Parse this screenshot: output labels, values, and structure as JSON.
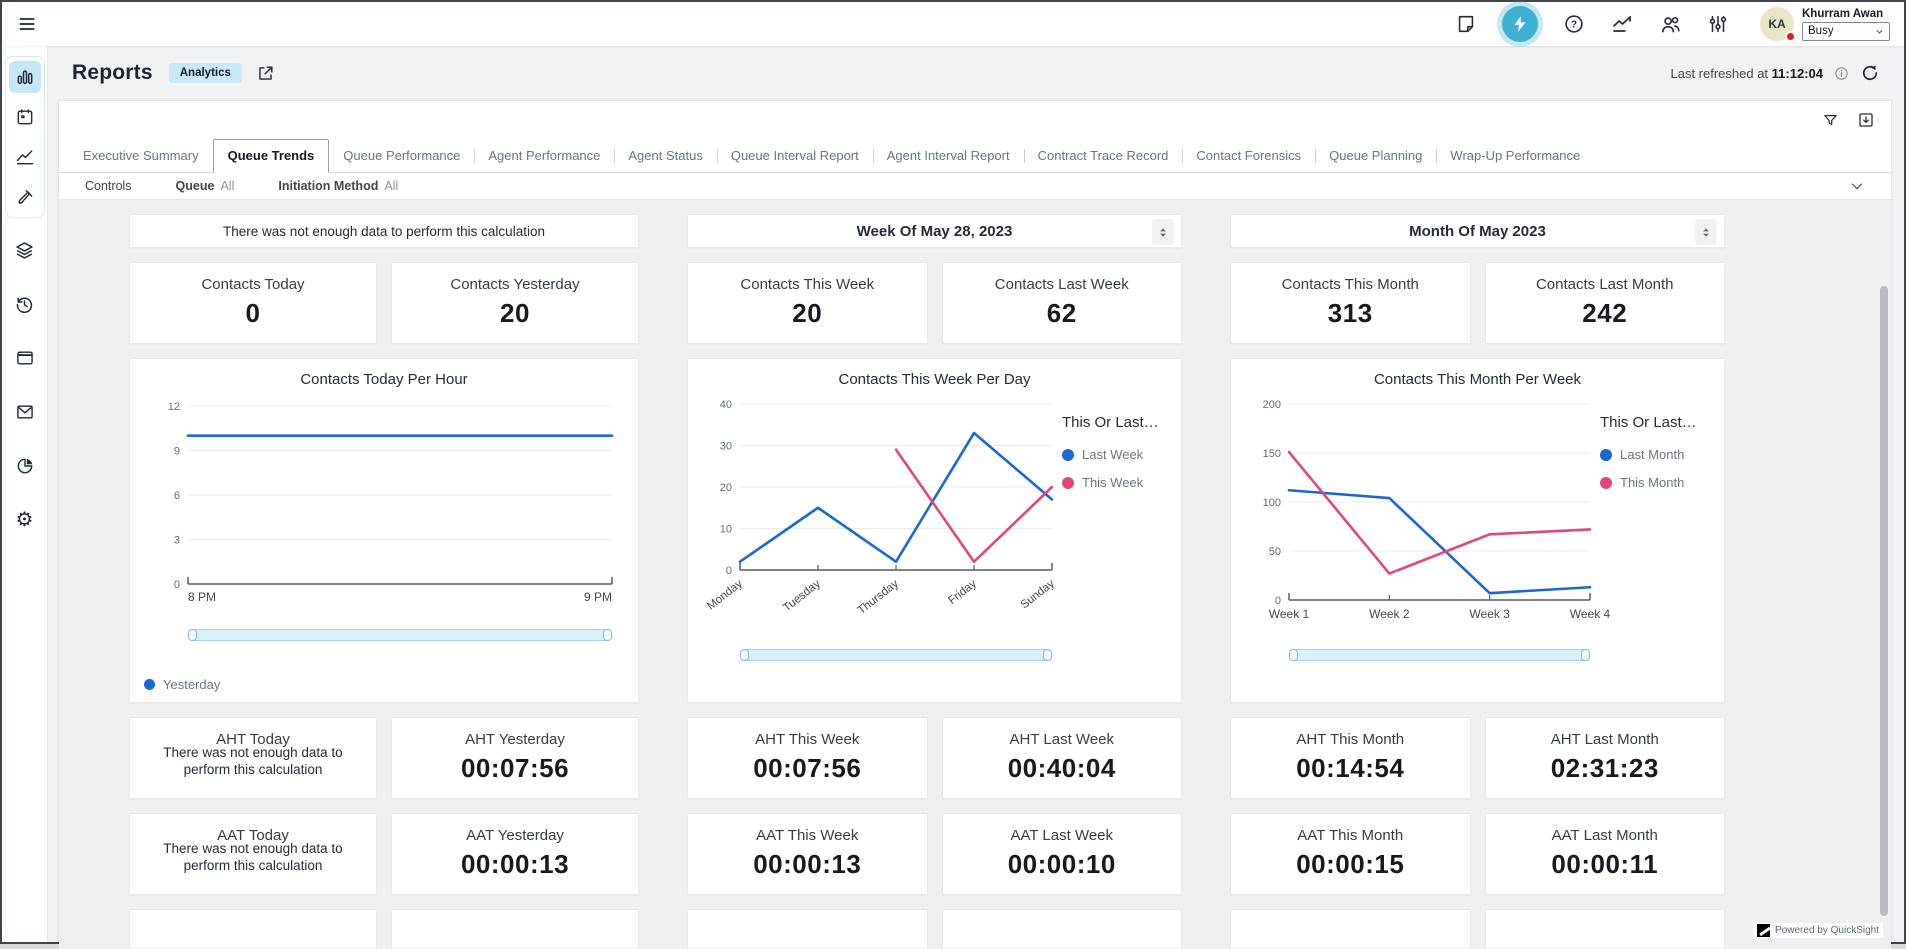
{
  "topbar": {
    "icons": [
      "menu-icon",
      "notes-icon",
      "tasks-lightning-icon",
      "help-icon",
      "metrics-icon",
      "users-icon",
      "preferences-icon"
    ],
    "user": {
      "initials": "KA",
      "name": "Khurram Awan",
      "status": "Busy"
    }
  },
  "header": {
    "title": "Reports",
    "badge": "Analytics",
    "last_refreshed_label": "Last refreshed at",
    "last_refreshed_time": "11:12:04"
  },
  "tabs": [
    {
      "label": "Executive Summary",
      "active": false
    },
    {
      "label": "Queue Trends",
      "active": true
    },
    {
      "label": "Queue Performance",
      "active": false
    },
    {
      "label": "Agent Performance",
      "active": false
    },
    {
      "label": "Agent Status",
      "active": false
    },
    {
      "label": "Queue Interval Report",
      "active": false
    },
    {
      "label": "Agent Interval Report",
      "active": false
    },
    {
      "label": "Contract Trace Record",
      "active": false
    },
    {
      "label": "Contact Forensics",
      "active": false
    },
    {
      "label": "Queue Planning",
      "active": false
    },
    {
      "label": "Wrap-Up Performance",
      "active": false
    }
  ],
  "controls": {
    "label": "Controls",
    "filters": [
      {
        "name": "Queue",
        "value": "All"
      },
      {
        "name": "Initiation Method",
        "value": "All"
      }
    ]
  },
  "columns": [
    {
      "banner": "There was not enough data to perform this calculation",
      "kpi_top": [
        {
          "label": "Contacts Today",
          "value": "0"
        },
        {
          "label": "Contacts Yesterday",
          "value": "20"
        }
      ],
      "kpi_aht": [
        {
          "label": "AHT Today",
          "message": "There was not enough data to perform this calculation"
        },
        {
          "label": "AHT Yesterday",
          "value": "00:07:56"
        }
      ],
      "kpi_aat": [
        {
          "label": "AAT Today",
          "message": "There was not enough data to perform this calculation"
        },
        {
          "label": "AAT Yesterday",
          "value": "00:00:13"
        }
      ]
    },
    {
      "period": "Week Of May 28, 2023",
      "kpi_top": [
        {
          "label": "Contacts This Week",
          "value": "20"
        },
        {
          "label": "Contacts Last Week",
          "value": "62"
        }
      ],
      "kpi_aht": [
        {
          "label": "AHT This Week",
          "value": "00:07:56"
        },
        {
          "label": "AHT Last Week",
          "value": "00:40:04"
        }
      ],
      "kpi_aat": [
        {
          "label": "AAT This Week",
          "value": "00:00:13"
        },
        {
          "label": "AAT Last Week",
          "value": "00:00:10"
        }
      ]
    },
    {
      "period": "Month Of May 2023",
      "kpi_top": [
        {
          "label": "Contacts This Month",
          "value": "313"
        },
        {
          "label": "Contacts Last Month",
          "value": "242"
        }
      ],
      "kpi_aht": [
        {
          "label": "AHT This Month",
          "value": "00:14:54"
        },
        {
          "label": "AHT Last Month",
          "value": "02:31:23"
        }
      ],
      "kpi_aat": [
        {
          "label": "AAT This Month",
          "value": "00:00:15"
        },
        {
          "label": "AAT Last Month",
          "value": "00:00:11"
        }
      ]
    }
  ],
  "chart_data": [
    {
      "type": "line",
      "title": "Contacts Today Per Hour",
      "categories": [
        "8 PM",
        "9 PM"
      ],
      "series": [
        {
          "name": "Yesterday",
          "color": "#1a66d2",
          "values": [
            10,
            10
          ]
        }
      ],
      "ylim": [
        0,
        12
      ],
      "yticks": [
        0,
        3,
        6,
        9,
        12
      ],
      "grid": true,
      "legend_position": "bottom"
    },
    {
      "type": "line",
      "title": "Contacts This Week Per Day",
      "legend_title": "This Or Last…",
      "categories": [
        "Monday",
        "Tuesday",
        "Thursday",
        "Friday",
        "Sunday"
      ],
      "series": [
        {
          "name": "Last Week",
          "color": "#1a66d2",
          "values": [
            2,
            15,
            2,
            33,
            17
          ]
        },
        {
          "name": "This Week",
          "color": "#e1477e",
          "values": [
            null,
            null,
            29,
            2,
            20
          ]
        }
      ],
      "ylim": [
        0,
        40
      ],
      "yticks": [
        0,
        10,
        20,
        30,
        40
      ],
      "grid": true,
      "rotate_x_labels": true,
      "legend_position": "right"
    },
    {
      "type": "line",
      "title": "Contacts This Month Per Week",
      "legend_title": "This Or Last…",
      "categories": [
        "Week 1",
        "Week 2",
        "Week 3",
        "Week 4"
      ],
      "series": [
        {
          "name": "Last Month",
          "color": "#1a66d2",
          "values": [
            112,
            104,
            7,
            13
          ]
        },
        {
          "name": "This Month",
          "color": "#e1477e",
          "values": [
            151,
            27,
            67,
            72
          ]
        }
      ],
      "ylim": [
        0,
        200
      ],
      "yticks": [
        0,
        50,
        100,
        150,
        200
      ],
      "grid": true,
      "legend_position": "right"
    }
  ],
  "colors": {
    "accent_teal": "#3fb0d5",
    "line_blue": "#1a66d2",
    "line_pink": "#e1477e",
    "badge_bg": "#c9e8f8",
    "status_busy": "#e01e1e"
  },
  "footer": {
    "powered_by": "Powered by QuickSight"
  }
}
